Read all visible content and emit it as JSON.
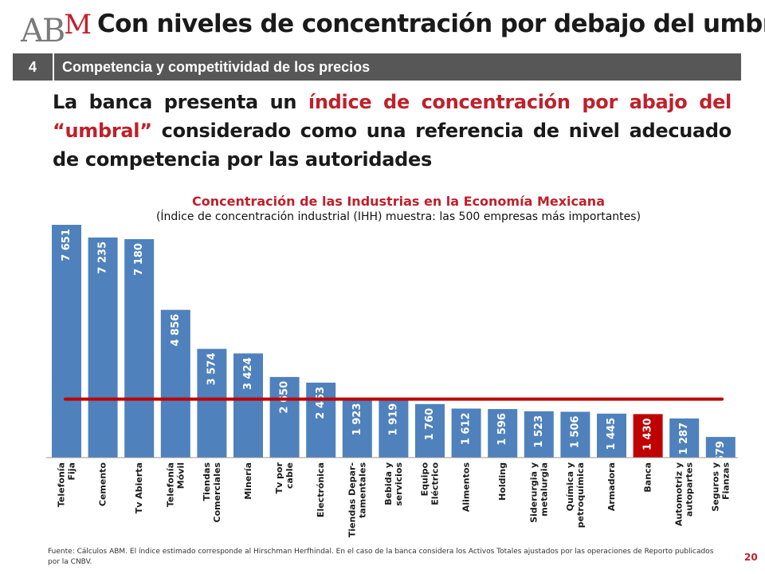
{
  "logo": {
    "text_a": "AB",
    "text_m": "M"
  },
  "header": {
    "title": "Con niveles de concentración por debajo del umbral"
  },
  "section": {
    "number": "4",
    "title": "Competencia y competitividad de los precios"
  },
  "lead": {
    "part1": "La banca presenta un ",
    "highlight": "índice de concentración por abajo del “umbral”",
    "part2": " considerado como una referencia de nivel adecuado de competencia por las autoridades"
  },
  "chart_data": {
    "type": "bar",
    "title": "Concentración de las Industrias en la Economía Mexicana",
    "subtitle": "(Índice de concentración industrial (IHH) muestra: las 500 empresas más importantes)",
    "categories": [
      "Telefonía Fija",
      "Cemento",
      "Tv Abierta",
      "Telefonía Móvil",
      "Tiendas Comerciales",
      "Minería",
      "Tv por cable",
      "Electrónica",
      "Tiendas Departamentales",
      "Bebida y servicios",
      "Equipo Eléctrico",
      "Alimentos",
      "Holding",
      "Siderurgia y metalurgia",
      "Química y petroquímica",
      "Armadora",
      "Banca",
      "Automotriz y autopartes",
      "Seguros y Fianzas"
    ],
    "tick_labels": [
      [
        "Telefonía",
        "Fija"
      ],
      [
        "Cemento"
      ],
      [
        "Tv Abierta"
      ],
      [
        "Telefonía",
        "Móvil"
      ],
      [
        "Tiendas",
        "Comerciales"
      ],
      [
        "Minería"
      ],
      [
        "Tv por",
        "cable"
      ],
      [
        "Electrónica"
      ],
      [
        "Tiendas Depar-",
        "tamentales"
      ],
      [
        "Bebida y",
        "servicios"
      ],
      [
        "Equipo",
        "Eléctrico"
      ],
      [
        "Alimentos"
      ],
      [
        "Holding"
      ],
      [
        "Siderurgia y",
        "metalurgia"
      ],
      [
        "Química y",
        "petroquímica"
      ],
      [
        "Armadora"
      ],
      [
        "Banca"
      ],
      [
        "Automotriz y",
        "autopartes"
      ],
      [
        "Seguros y",
        "Fianzas"
      ]
    ],
    "values": [
      7651,
      7235,
      7180,
      4856,
      3574,
      3424,
      2650,
      2463,
      1923,
      1919,
      1760,
      1612,
      1596,
      1523,
      1506,
      1445,
      1430,
      1287,
      679
    ],
    "value_labels": [
      "7 651",
      "7 235",
      "7 180",
      "4 856",
      "3 574",
      "3 424",
      "2 650",
      "2 463",
      "1 923",
      "1 919",
      "1 760",
      "1 612",
      "1 596",
      "1 523",
      "1 506",
      "1 445",
      "1 430",
      "1 287",
      "679"
    ],
    "threshold": 2000,
    "highlight_category": "Banca",
    "colors": {
      "bar": "#4f81bd",
      "highlight": "#c00000",
      "threshold": "#c00000"
    },
    "ylim": [
      0,
      8000
    ],
    "grid": false
  },
  "footer": {
    "source": "Fuente: Cálculos ABM. El índice estimado corresponde al Hirschman Herfhindal. En el caso de la banca considera los Activos Totales ajustados por las operaciones de Reporto publicados por la CNBV.",
    "page_number": "20"
  }
}
